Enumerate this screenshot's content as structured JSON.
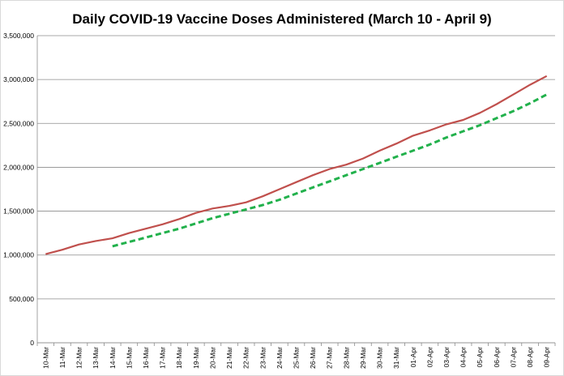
{
  "chart_data": {
    "type": "line",
    "title": "Daily COVID-19 Vaccine Doses Administered (March 10 - April 9)",
    "xlabel": "",
    "ylabel": "",
    "ylim": [
      0,
      3500000
    ],
    "ytick_values": [
      0,
      500000,
      1000000,
      1500000,
      2000000,
      2500000,
      3000000,
      3500000
    ],
    "ytick_labels": [
      "0",
      "500,000",
      "1,000,000",
      "1,500,000",
      "2,000,000",
      "2,500,000",
      "3,000,000",
      "3,500,000"
    ],
    "grid": true,
    "legend": "none",
    "categories": [
      "10-Mar",
      "11-Mar",
      "12-Mar",
      "13-Mar",
      "14-Mar",
      "15-Mar",
      "16-Mar",
      "17-Mar",
      "18-Mar",
      "19-Mar",
      "20-Mar",
      "21-Mar",
      "22-Mar",
      "23-Mar",
      "24-Mar",
      "25-Mar",
      "26-Mar",
      "27-Mar",
      "28-Mar",
      "29-Mar",
      "30-Mar",
      "31-Mar",
      "01-Apr",
      "02-Apr",
      "03-Apr",
      "04-Apr",
      "05-Apr",
      "06-Apr",
      "07-Apr",
      "08-Apr",
      "09-Apr"
    ],
    "series": [
      {
        "color": "#c0504d",
        "style": "solid",
        "values": [
          1010000,
          1060000,
          1120000,
          1160000,
          1190000,
          1250000,
          1300000,
          1350000,
          1410000,
          1480000,
          1530000,
          1560000,
          1600000,
          1670000,
          1750000,
          1830000,
          1910000,
          1980000,
          2030000,
          2100000,
          2190000,
          2270000,
          2360000,
          2420000,
          2490000,
          2540000,
          2620000,
          2720000,
          2830000,
          2940000,
          3040000
        ]
      },
      {
        "color": "#22b14c",
        "style": "dashed",
        "values": [
          null,
          null,
          null,
          null,
          1100000,
          1150000,
          1200000,
          1250000,
          1300000,
          1360000,
          1420000,
          1470000,
          1520000,
          1570000,
          1630000,
          1700000,
          1770000,
          1840000,
          1910000,
          1980000,
          2050000,
          2120000,
          2190000,
          2260000,
          2340000,
          2410000,
          2480000,
          2560000,
          2640000,
          2730000,
          2830000
        ]
      }
    ]
  }
}
